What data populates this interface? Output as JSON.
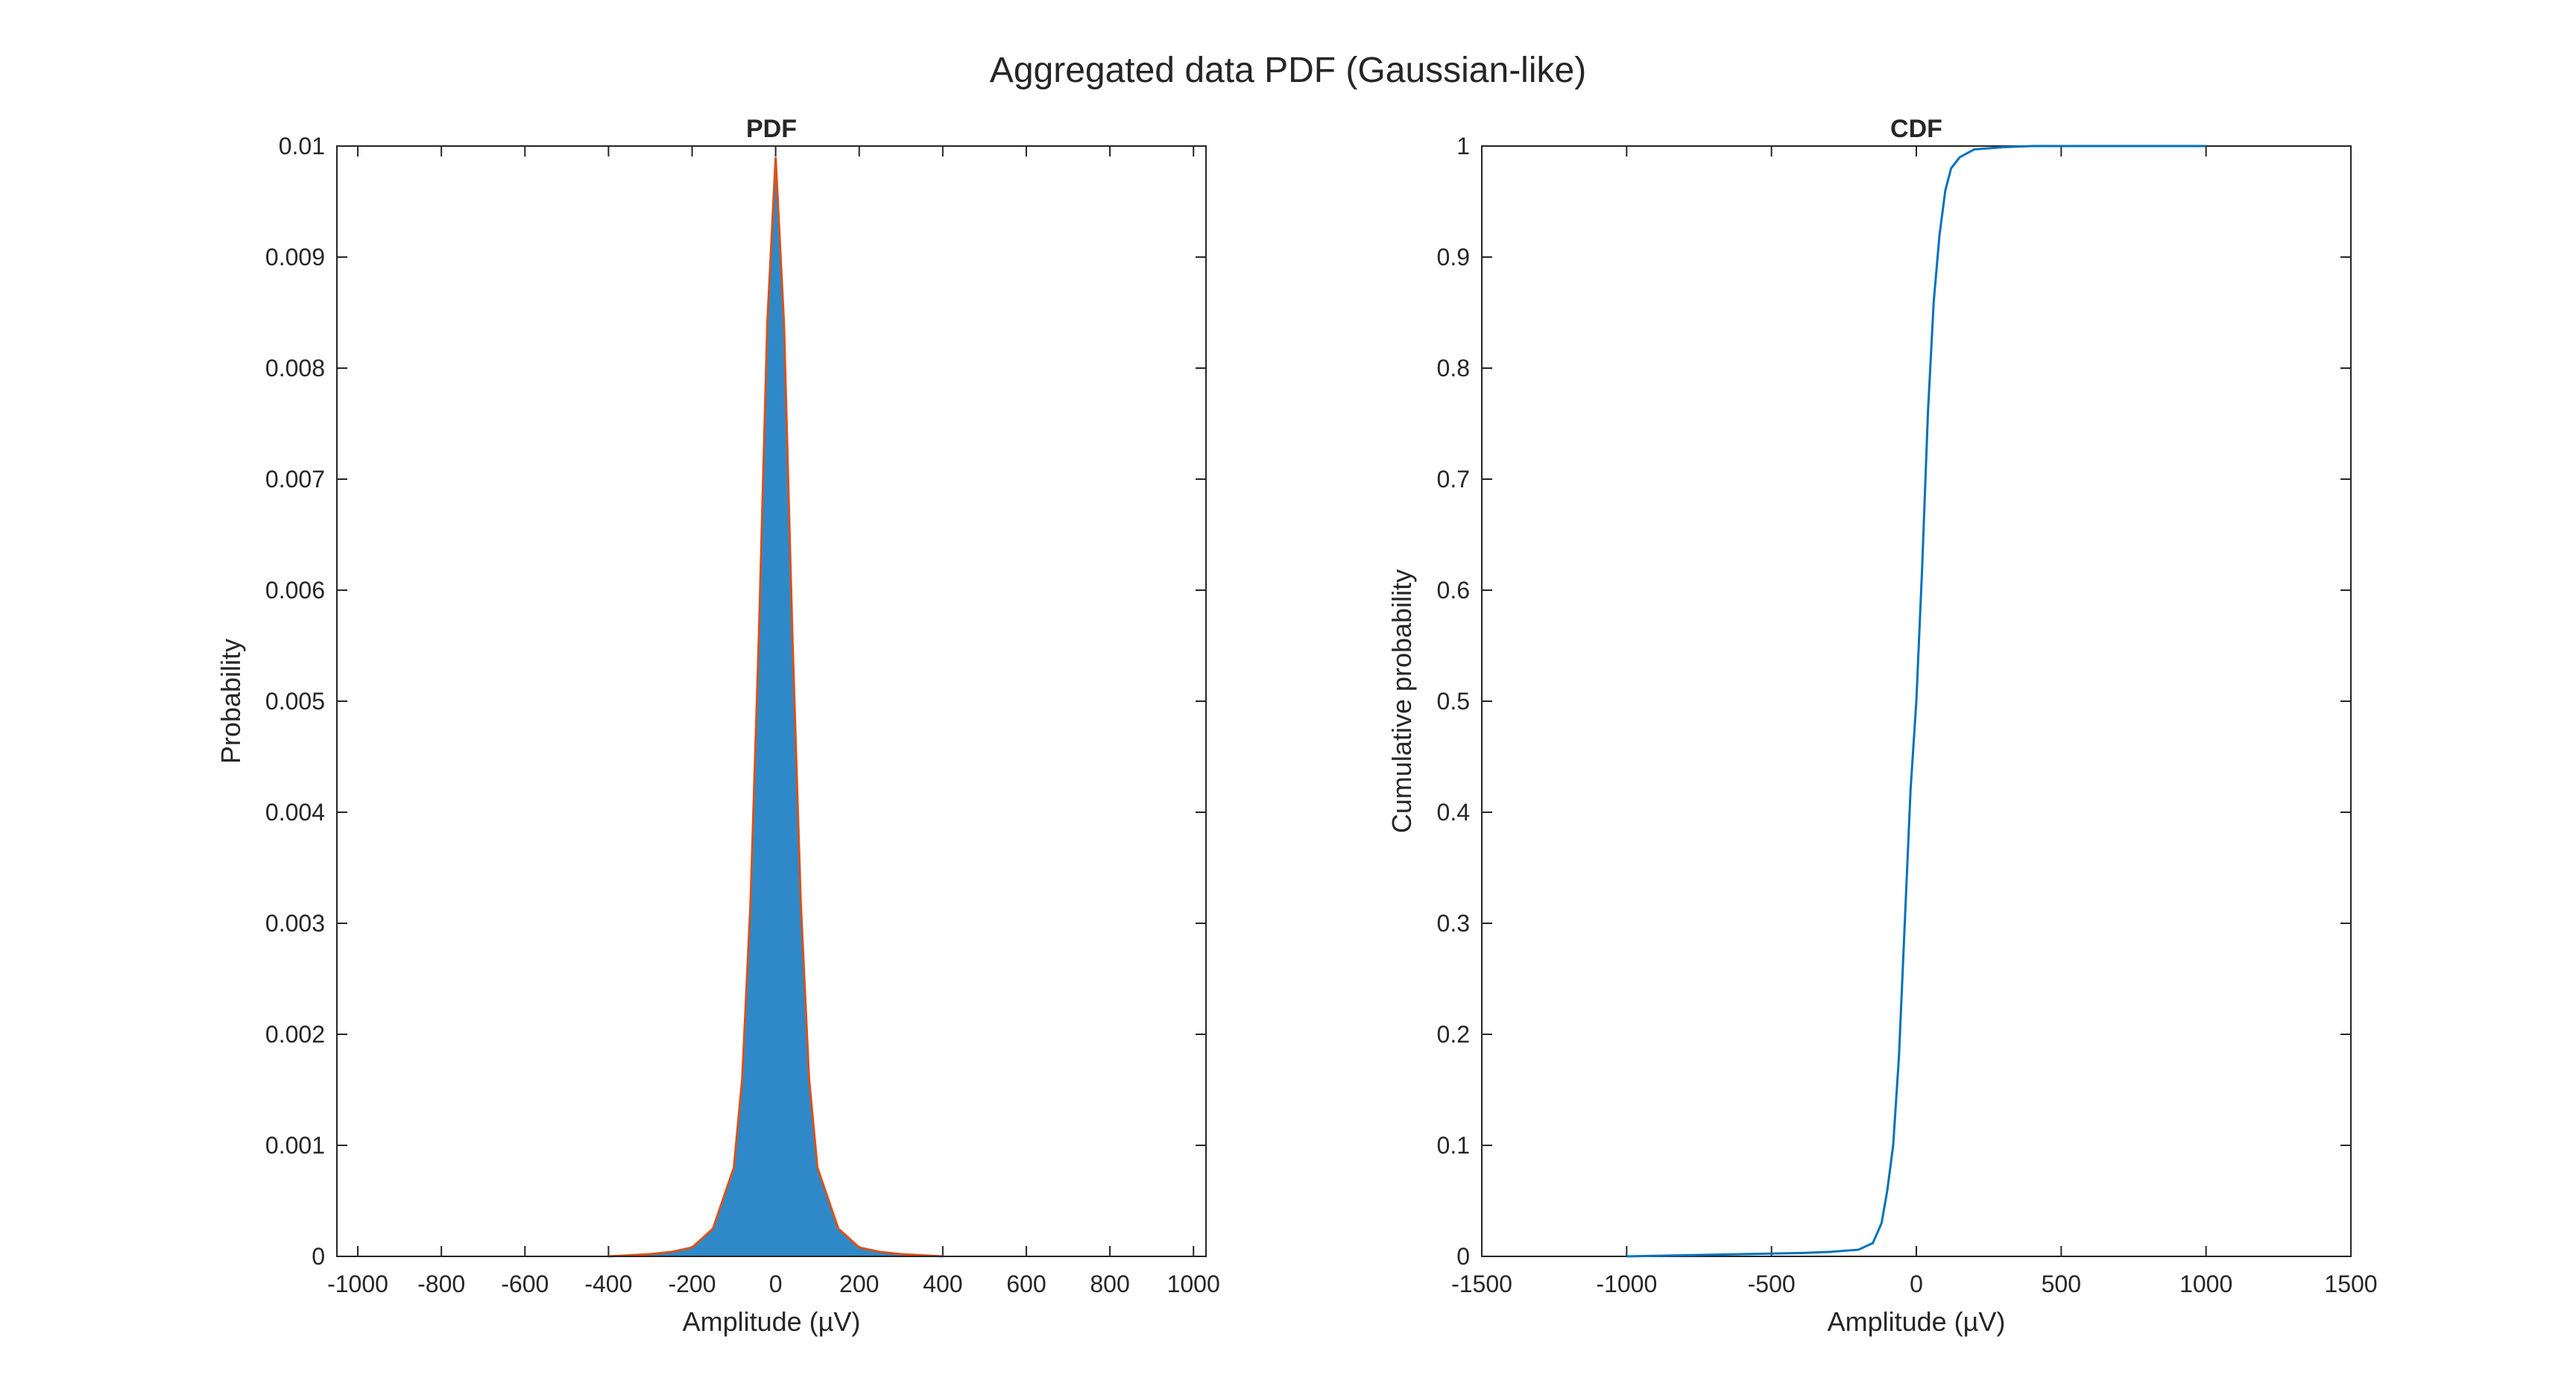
{
  "figure": {
    "title": "Aggregated data PDF (Gaussian-like)"
  },
  "chart_data": [
    {
      "type": "histogram",
      "title": "PDF",
      "xlabel": "Amplitude (µV)",
      "ylabel": "Probability",
      "xlim": [
        -1050,
        1030
      ],
      "ylim": [
        0,
        0.01
      ],
      "xticks": [
        -1000,
        -800,
        -600,
        -400,
        -200,
        0,
        200,
        400,
        600,
        800,
        1000
      ],
      "yticks": [
        0,
        0.001,
        0.002,
        0.003,
        0.004,
        0.005,
        0.006,
        0.007,
        0.008,
        0.009,
        0.01
      ],
      "grid": false,
      "legend": "none",
      "bar_color": "#2f89c9",
      "fit_color": "#d95319",
      "density": {
        "x": [
          -400,
          -300,
          -250,
          -200,
          -150,
          -100,
          -80,
          -60,
          -40,
          -20,
          0,
          20,
          40,
          60,
          80,
          100,
          150,
          200,
          250,
          300,
          400
        ],
        "y": [
          0.0,
          2e-05,
          4e-05,
          8e-05,
          0.00025,
          0.0008,
          0.0016,
          0.0032,
          0.0056,
          0.0084,
          0.0099,
          0.0084,
          0.0056,
          0.0032,
          0.0016,
          0.0008,
          0.00025,
          8e-05,
          4e-05,
          2e-05,
          0.0
        ]
      }
    },
    {
      "type": "line",
      "title": "CDF",
      "xlabel": "Amplitude (µV)",
      "ylabel": "Cumulative probability",
      "xlim": [
        -1500,
        1500
      ],
      "ylim": [
        0,
        1
      ],
      "xticks": [
        -1500,
        -1000,
        -500,
        0,
        500,
        1000,
        1500
      ],
      "yticks": [
        0,
        0.1,
        0.2,
        0.3,
        0.4,
        0.5,
        0.6,
        0.7,
        0.8,
        0.9,
        1
      ],
      "grid": false,
      "legend": "none",
      "line_color": "#0072bd",
      "series": [
        {
          "x": [
            -1000,
            -800,
            -600,
            -400,
            -300,
            -200,
            -150,
            -120,
            -100,
            -80,
            -60,
            -40,
            -20,
            0,
            20,
            40,
            60,
            80,
            100,
            120,
            150,
            200,
            300,
            400,
            600,
            1000
          ],
          "y": [
            0.0,
            0.001,
            0.002,
            0.003,
            0.004,
            0.006,
            0.012,
            0.03,
            0.06,
            0.1,
            0.18,
            0.3,
            0.42,
            0.5,
            0.62,
            0.76,
            0.86,
            0.92,
            0.96,
            0.98,
            0.99,
            0.997,
            0.999,
            1.0,
            1.0,
            1.0
          ]
        }
      ]
    }
  ]
}
